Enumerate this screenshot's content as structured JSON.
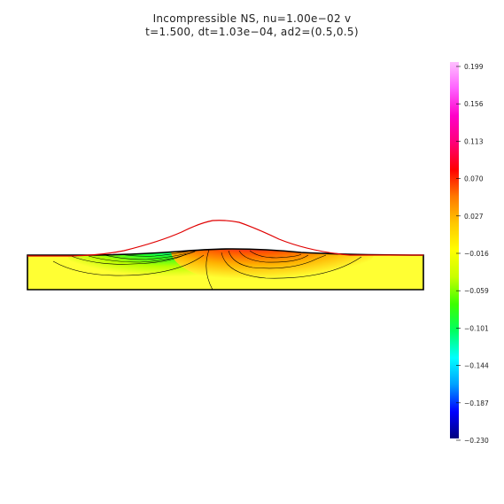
{
  "title": {
    "line1": "Incompressible  NS,  nu=1.00e−02  v",
    "line2": "t=1.500,  dt=1.03e−04,  ad2=(0.5,0.5)"
  },
  "colorbar": {
    "ticks": [
      "0.199",
      "0.156",
      "0.113",
      "0.070",
      "0.027",
      "−0.016",
      "−0.059",
      "−0.101",
      "−0.144",
      "−0.187",
      "−0.230"
    ],
    "min": -0.23,
    "max": 0.199,
    "colors": [
      "#00007f",
      "#0000ff",
      "#00a0ff",
      "#00ffff",
      "#00ff60",
      "#3cff00",
      "#c8ff00",
      "#ffff00",
      "#ffc800",
      "#ff7800",
      "#ff0000",
      "#ff0078",
      "#ff00c8",
      "#ff60ff",
      "#ffc0ff"
    ]
  },
  "domain_colors": {
    "background_field": "#ffff33",
    "surface_curve": "#e00000",
    "outline": "#000000"
  }
}
